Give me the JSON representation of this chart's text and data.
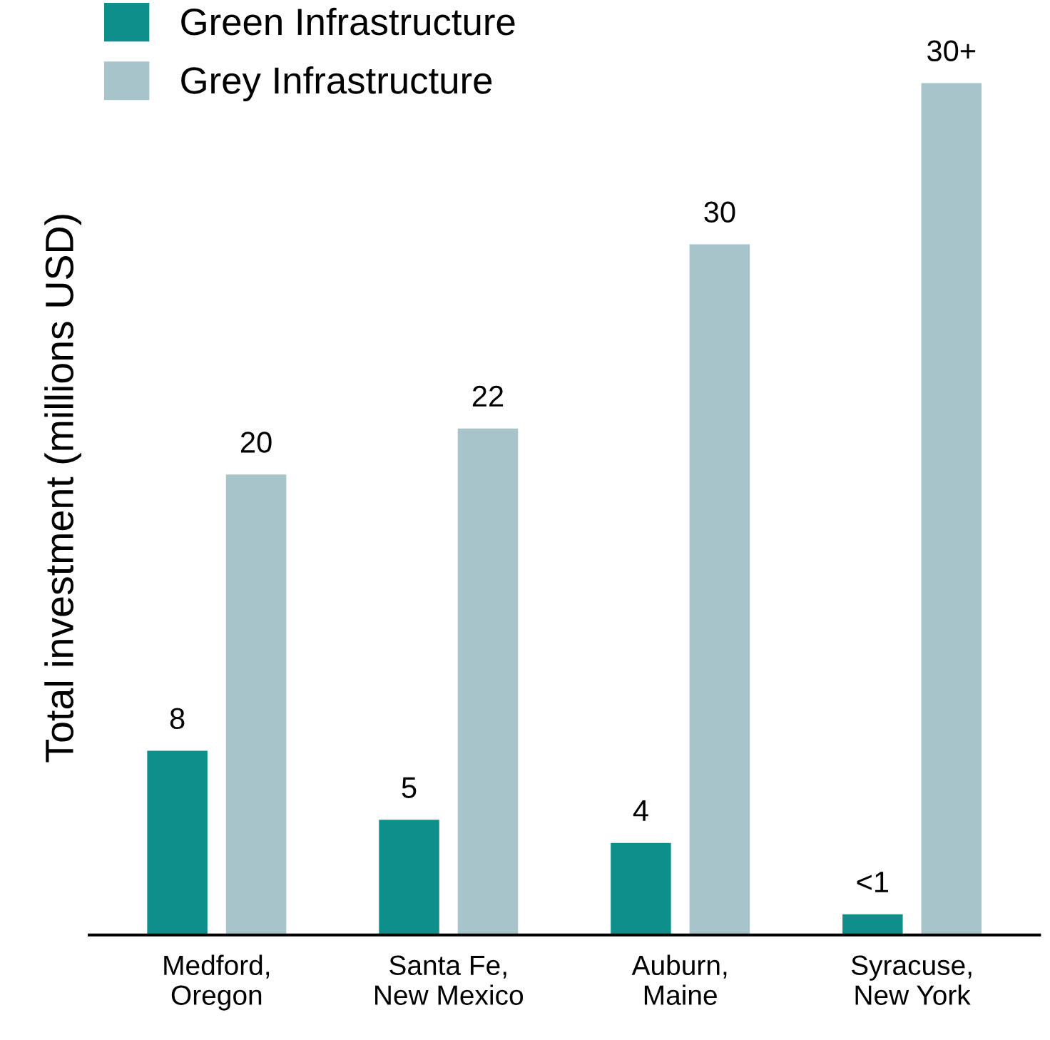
{
  "chart_data": {
    "type": "bar",
    "ylabel": "Total investment (millions USD)",
    "categories": [
      "Medford,\nOregon",
      "Santa Fe,\nNew Mexico",
      "Auburn,\nMaine",
      "Syracuse,\nNew York"
    ],
    "series": [
      {
        "name": "Green Infrastructure",
        "color": "#0f8f8c",
        "values": [
          8,
          5,
          4,
          0.9
        ],
        "value_labels": [
          "8",
          "5",
          "4",
          "<1"
        ]
      },
      {
        "name": "Grey Infrastructure",
        "color": "#a6c4c9",
        "values": [
          20,
          22,
          30,
          37
        ],
        "value_labels": [
          "20",
          "22",
          "30",
          "30+"
        ]
      }
    ],
    "legend": "top left",
    "grid": false
  }
}
